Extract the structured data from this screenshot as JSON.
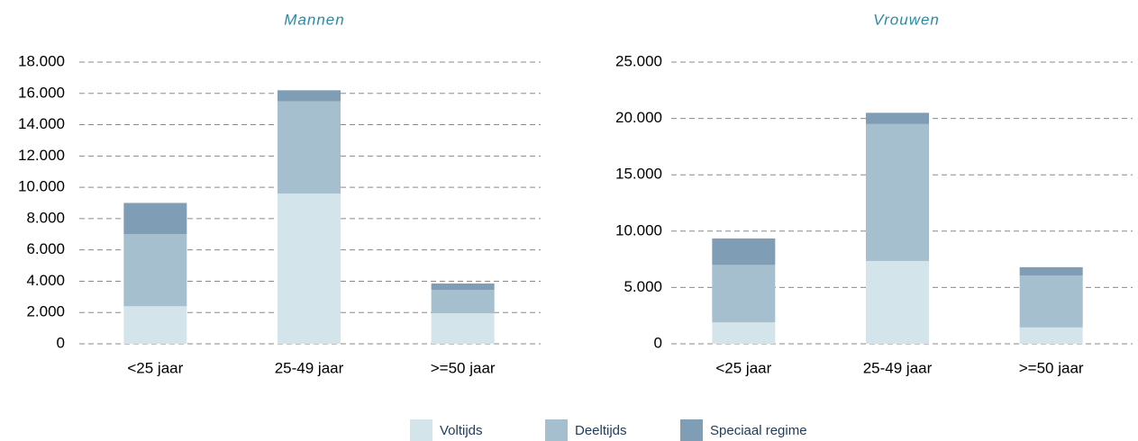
{
  "chart_data": [
    {
      "type": "bar",
      "stacked": true,
      "title": "Mannen",
      "categories": [
        "<25 jaar",
        "25-49 jaar",
        ">=50 jaar"
      ],
      "series": [
        {
          "name": "Voltijds",
          "color": "#d3e5ea",
          "values": [
            2400,
            9600,
            1950
          ]
        },
        {
          "name": "Deeltijds",
          "color": "#a6bfcf",
          "values": [
            4600,
            5900,
            1500
          ]
        },
        {
          "name": "Speciaal regime",
          "color": "#7f9db5",
          "values": [
            2000,
            700,
            400
          ]
        }
      ],
      "ylim": [
        0,
        18000
      ],
      "yticks": [
        0,
        {
          "value": 2000,
          "label": "2.000"
        },
        {
          "value": 4000,
          "label": "4.000"
        },
        {
          "value": 6000,
          "label": "6.000"
        },
        {
          "value": 8000,
          "label": "8.000"
        },
        {
          "value": 10000,
          "label": "10.000"
        },
        {
          "value": 12000,
          "label": "12.000"
        },
        {
          "value": 14000,
          "label": "14.000"
        },
        {
          "value": 16000,
          "label": "16.000"
        },
        {
          "value": 18000,
          "label": "18.000"
        }
      ],
      "grid": true,
      "legend": "bottom"
    },
    {
      "type": "bar",
      "stacked": true,
      "title": "Vrouwen",
      "categories": [
        "<25 jaar",
        "25-49 jaar",
        ">=50 jaar"
      ],
      "series": [
        {
          "color": "#d3e5ea",
          "values": [
            1900,
            7350,
            1450
          ]
        },
        {
          "color": "#a6bfcf",
          "values": [
            5100,
            12150,
            4600
          ]
        },
        {
          "color": "#7f9db5",
          "values": [
            2350,
            1000,
            750
          ]
        }
      ],
      "ylim": [
        0,
        25000
      ],
      "yticks": [
        0,
        {
          "value": 5000,
          "label": "5.000"
        },
        {
          "value": 10000,
          "label": "10.000"
        },
        {
          "value": 15000,
          "label": "15.000"
        },
        {
          "value": 20000,
          "label": "20.000"
        },
        {
          "value": 25000,
          "label": "25.000"
        }
      ],
      "grid": true
    }
  ]
}
